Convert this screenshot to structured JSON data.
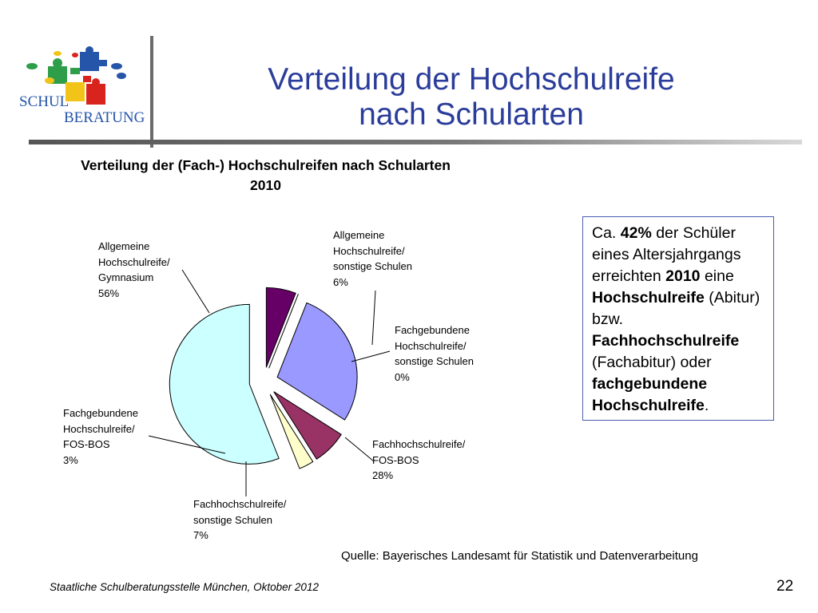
{
  "slide": {
    "title_lines": [
      "Verteilung der Hochschulreife",
      "nach Schularten"
    ],
    "logo_text_1": "SCHUL",
    "logo_text_2": "BERATUNG"
  },
  "chart_data": {
    "type": "pie",
    "title": "Verteilung der (Fach-) Hochschulreifen nach Schularten 2010",
    "title_lines": [
      "Verteilung der (Fach-) Hochschulreifen nach Schularten",
      "2010"
    ],
    "slices": [
      {
        "label": [
          "Allgemeine",
          "Hochschulreife/",
          "sonstige Schulen",
          "6%"
        ],
        "value": 6,
        "color": "#660066"
      },
      {
        "label": [
          "Fachgebundene",
          "Hochschulreife/",
          "sonstige Schulen",
          "0%"
        ],
        "value": 0,
        "color": "#ffffff"
      },
      {
        "label": [
          "Fachhochschulreife/",
          "FOS-BOS",
          "28%"
        ],
        "value": 28,
        "color": "#9999ff"
      },
      {
        "label": [
          "Fachhochschulreife/",
          "sonstige Schulen",
          "7%"
        ],
        "value": 7,
        "color": "#993366"
      },
      {
        "label": [
          "Fachgebundene",
          "Hochschulreife/",
          "FOS-BOS",
          "3%"
        ],
        "value": 3,
        "color": "#ffffcc"
      },
      {
        "label": [
          "Allgemeine",
          "Hochschulreife/",
          "Gymnasium",
          "56%"
        ],
        "value": 56,
        "color": "#ccffff"
      }
    ],
    "start_angle_deg": 0,
    "direction": "clockwise",
    "exploded": true
  },
  "callout": {
    "segments": [
      {
        "text": "Ca. ",
        "bold": false
      },
      {
        "text": "42%",
        "bold": true
      },
      {
        "text": " der Schüler eines Altersjahrgangs erreichten ",
        "bold": false
      },
      {
        "text": "2010",
        "bold": true
      },
      {
        "text": " eine ",
        "bold": false
      },
      {
        "text": "Hochschulreife",
        "bold": true
      },
      {
        "text": " (Abitur) bzw. ",
        "bold": false
      },
      {
        "text": "Fachhochschulreife",
        "bold": true
      },
      {
        "text": " (Fachabitur) oder ",
        "bold": false
      },
      {
        "text": "fachgebundene Hochschulreife",
        "bold": true
      },
      {
        "text": ".",
        "bold": false
      }
    ]
  },
  "source": "Quelle: Bayerisches Landesamt für Statistik und Datenverarbeitung",
  "footer": "Staatliche Schulberatungsstelle München, Oktober 2012",
  "page_number": "22"
}
